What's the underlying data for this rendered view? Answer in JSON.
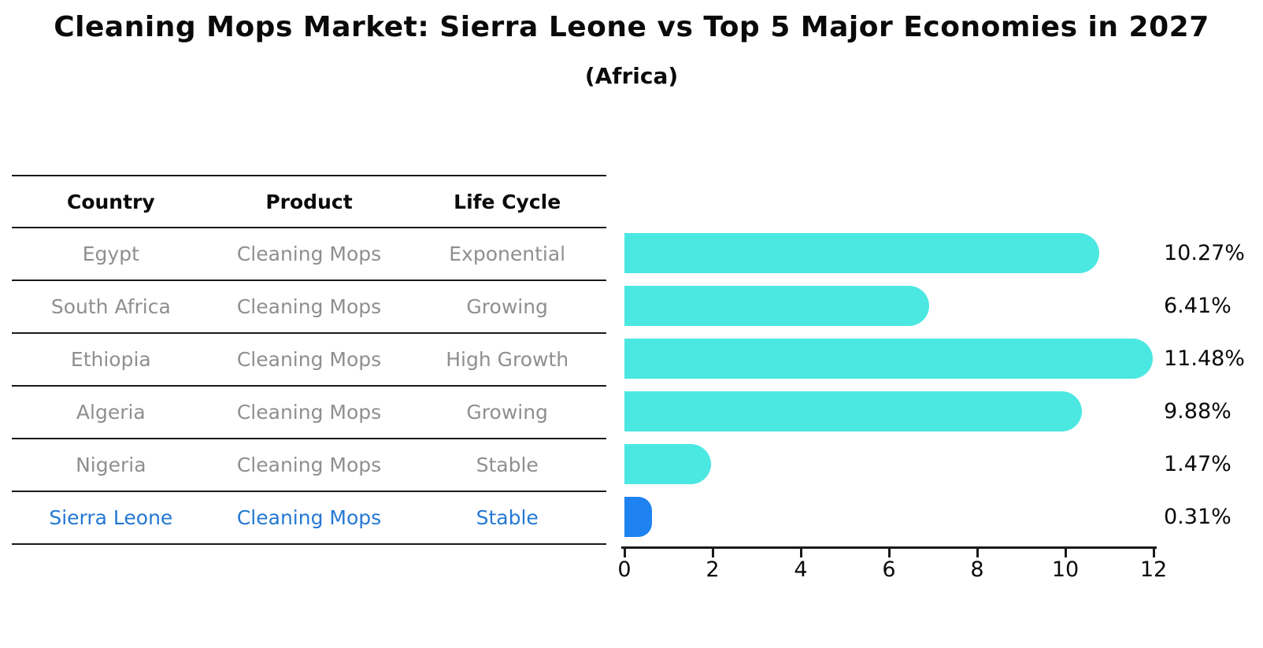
{
  "title": "Cleaning Mops Market: Sierra Leone vs Top 5 Major Economies in 2027",
  "subtitle": "(Africa)",
  "colors": {
    "bar": "#4be8e1",
    "highlight_bar": "#1e82f0",
    "highlight_text": "#2478d4",
    "row_text": "#8f8f8f",
    "heading_text": "#0a0a0a",
    "line": "#1a1a1a"
  },
  "table": {
    "headers": [
      "Country",
      "Product",
      "Life Cycle"
    ],
    "rows": [
      {
        "country": "Egypt",
        "product": "Cleaning Mops",
        "life_cycle": "Exponential",
        "highlight": false
      },
      {
        "country": "South Africa",
        "product": "Cleaning Mops",
        "life_cycle": "Growing",
        "highlight": false
      },
      {
        "country": "Ethiopia",
        "product": "Cleaning Mops",
        "life_cycle": "High Growth",
        "highlight": false
      },
      {
        "country": "Algeria",
        "product": "Cleaning Mops",
        "life_cycle": "Growing",
        "highlight": false
      },
      {
        "country": "Nigeria",
        "product": "Cleaning Mops",
        "life_cycle": "Stable",
        "highlight": false
      },
      {
        "country": "Sierra Leone",
        "product": "Cleaning Mops",
        "life_cycle": "Stable",
        "highlight": true
      }
    ]
  },
  "chart_data": {
    "type": "bar",
    "orientation": "horizontal",
    "title": "Cleaning Mops Market: Sierra Leone vs Top 5 Major Economies in 2027 (Africa)",
    "categories": [
      "Egypt",
      "South Africa",
      "Ethiopia",
      "Algeria",
      "Nigeria",
      "Sierra Leone"
    ],
    "values": [
      10.27,
      6.41,
      11.48,
      9.88,
      1.47,
      0.31
    ],
    "value_labels": [
      "10.27%",
      "6.41%",
      "11.48%",
      "9.88%",
      "1.47%",
      "0.31%"
    ],
    "xlim": [
      0,
      12
    ],
    "x_ticks": [
      "0",
      "2",
      "4",
      "6",
      "8",
      "10",
      "12"
    ],
    "grid": false,
    "legend": false,
    "highlight_index": 5,
    "bar_color": "#4be8e1",
    "highlight_color": "#1e82f0"
  }
}
